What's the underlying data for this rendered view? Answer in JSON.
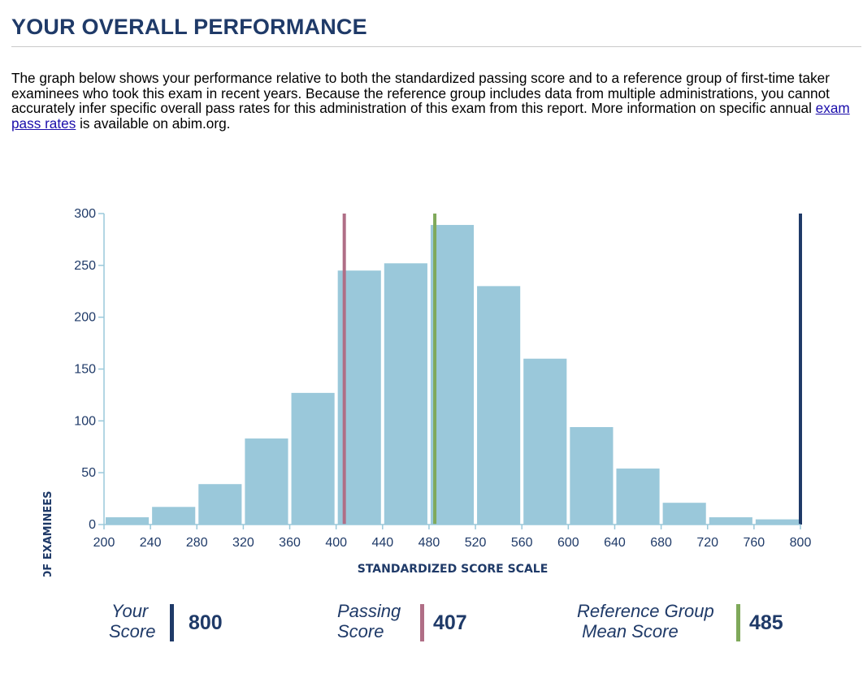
{
  "header": {
    "title": "YOUR OVERALL PERFORMANCE"
  },
  "intro": {
    "text_before_link": "The graph below shows your performance relative to both the standardized passing score and to a reference group of first-time taker examinees who took this exam in recent years. Because the reference group includes data from multiple administrations, you cannot accurately infer specific overall pass rates for this administration of this exam from this report. More information on specific annual ",
    "link_text": "exam pass rates",
    "text_after_link": " is available on abim.org."
  },
  "chart_data": {
    "type": "bar",
    "xlabel": "STANDARDIZED SCORE SCALE",
    "ylabel": "NUMBER OF EXAMINEES",
    "xlim": [
      200,
      800
    ],
    "ylim": [
      0,
      300
    ],
    "x_ticks": [
      200,
      240,
      280,
      320,
      360,
      400,
      440,
      480,
      520,
      560,
      600,
      640,
      680,
      720,
      760,
      800
    ],
    "y_ticks": [
      0,
      50,
      100,
      150,
      200,
      250,
      300
    ],
    "bin_width": 40,
    "bins": [
      {
        "start": 200,
        "end": 240,
        "value": 7
      },
      {
        "start": 240,
        "end": 280,
        "value": 17
      },
      {
        "start": 280,
        "end": 320,
        "value": 39
      },
      {
        "start": 320,
        "end": 360,
        "value": 83
      },
      {
        "start": 360,
        "end": 400,
        "value": 127
      },
      {
        "start": 400,
        "end": 440,
        "value": 245
      },
      {
        "start": 440,
        "end": 480,
        "value": 252
      },
      {
        "start": 480,
        "end": 520,
        "value": 289
      },
      {
        "start": 520,
        "end": 560,
        "value": 230
      },
      {
        "start": 560,
        "end": 600,
        "value": 160
      },
      {
        "start": 600,
        "end": 640,
        "value": 94
      },
      {
        "start": 640,
        "end": 680,
        "value": 54
      },
      {
        "start": 680,
        "end": 720,
        "value": 21
      },
      {
        "start": 720,
        "end": 760,
        "value": 7
      },
      {
        "start": 760,
        "end": 800,
        "value": 5
      }
    ],
    "bar_color": "#9ac8da",
    "axis_color": "#9ac8da",
    "text_color": "#1f3a68",
    "markers": [
      {
        "name": "your-score",
        "x": 800,
        "color": "#1f3a68"
      },
      {
        "name": "passing-score",
        "x": 407,
        "color": "#b06e86"
      },
      {
        "name": "reference-mean",
        "x": 485,
        "color": "#7fa95a"
      }
    ]
  },
  "legend": {
    "your_score": {
      "line1": "Your",
      "line2": "Score",
      "value": "800",
      "color": "#1f3a68"
    },
    "passing_score": {
      "line1": "Passing",
      "line2": "Score",
      "value": "407",
      "color": "#b06e86"
    },
    "reference_mean": {
      "line1": "Reference Group",
      "line2": " Mean Score",
      "value": "485",
      "color": "#7fa95a"
    }
  }
}
